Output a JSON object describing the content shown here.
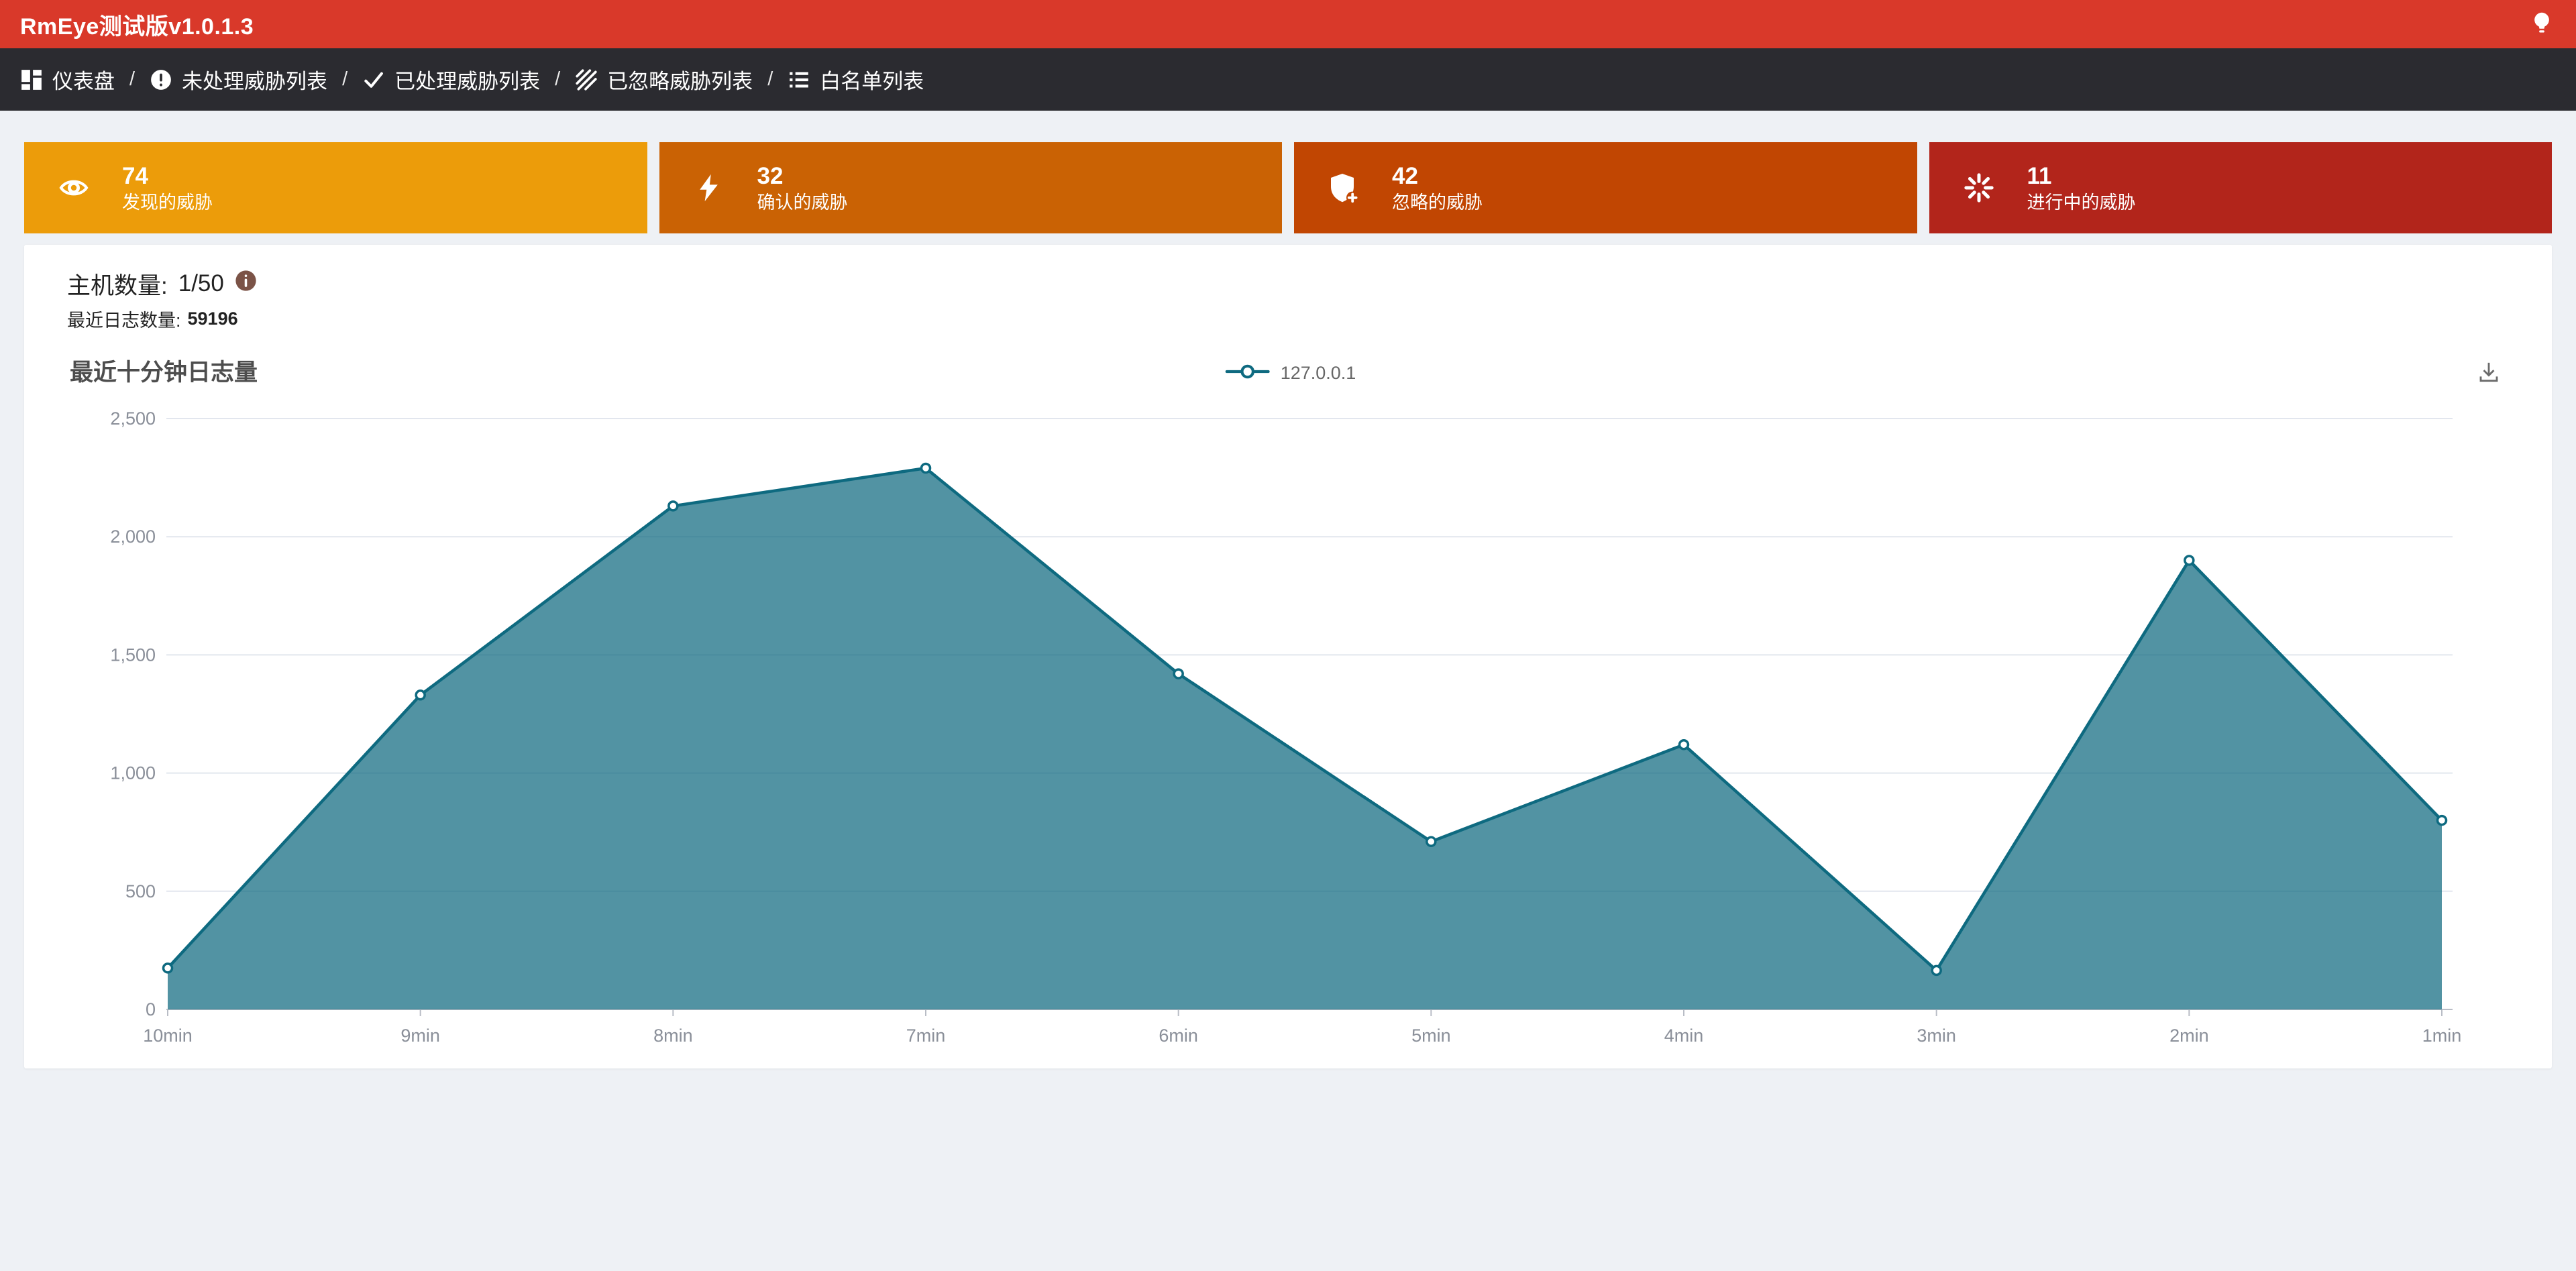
{
  "colors": {
    "page_bg": "#eef1f5",
    "header_bg": "#d9392a",
    "nav_bg": "#2b2b30",
    "panel_bg": "#ffffff",
    "grid_line": "#e2e6ee",
    "axis_line": "#b9bdc6",
    "axis_text": "#8a8f99",
    "chart_line": "#0e6a80",
    "chart_fill": "#0f6980",
    "info_icon": "#7b5347",
    "download_icon": "#6b6b6b"
  },
  "header": {
    "title": "RmEye测试版v1.0.1.3",
    "lightbulb_icon": "lightbulb"
  },
  "nav": {
    "separator": "/",
    "items": [
      {
        "icon": "dashboard",
        "label": "仪表盘"
      },
      {
        "icon": "alert-circle",
        "label": "未处理威胁列表"
      },
      {
        "icon": "check",
        "label": "已处理威胁列表"
      },
      {
        "icon": "hatch",
        "label": "已忽略威胁列表"
      },
      {
        "icon": "list",
        "label": "白名单列表"
      }
    ]
  },
  "stat_cards": [
    {
      "icon": "eye",
      "value": "74",
      "label": "发现的威胁",
      "color": "#ec9c0a"
    },
    {
      "icon": "bolt",
      "value": "32",
      "label": "确认的威胁",
      "color": "#ca6204"
    },
    {
      "icon": "shield-plus",
      "value": "42",
      "label": "忽略的威胁",
      "color": "#c14602"
    },
    {
      "icon": "spinner",
      "value": "11",
      "label": "进行中的威胁",
      "color": "#b2251b"
    }
  ],
  "summary": {
    "host_label": "主机数量:",
    "host_value": "1/50",
    "log_label": "最近日志数量:",
    "log_value": "59196"
  },
  "chart_data": {
    "type": "area",
    "title": "最近十分钟日志量",
    "xlabel": "",
    "ylabel": "",
    "categories": [
      "10min",
      "9min",
      "8min",
      "7min",
      "6min",
      "5min",
      "4min",
      "3min",
      "2min",
      "1min"
    ],
    "series": [
      {
        "name": "127.0.0.1",
        "values": [
          175,
          1330,
          2130,
          2290,
          1420,
          710,
          1120,
          165,
          1900,
          800
        ]
      }
    ],
    "ylim": [
      0,
      2500
    ],
    "yticks": [
      0,
      500,
      1000,
      1500,
      2000,
      2500
    ],
    "ytick_labels": [
      "0",
      "500",
      "1,000",
      "1,500",
      "2,000",
      "2,500"
    ],
    "grid": true,
    "legend_position": "top-center"
  }
}
